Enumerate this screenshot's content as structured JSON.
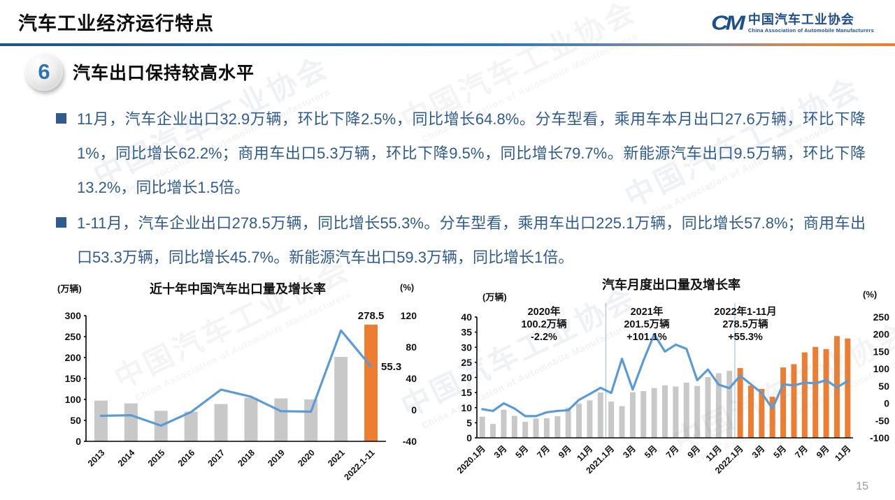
{
  "page": {
    "number": "15"
  },
  "header": {
    "title": "汽车工业经济运行特点",
    "logo": {
      "mark": "CM",
      "cn": "中国汽车工业协会",
      "en": "China Association of Automobile Manufacturers"
    }
  },
  "section": {
    "number": "6",
    "heading": "汽车出口保持较高水平"
  },
  "bullets": [
    "11月，汽车企业出口32.9万辆，环比下降2.5%，同比增长64.8%。分车型看，乘用车本月出口27.6万辆，环比下降1%，同比增长62.2%；商用车出口5.3万辆，环比下降9.5%，同比增长79.7%。新能源汽车出口9.5万辆，环比下降13.2%，同比增长1.5倍。",
    "1-11月，汽车企业出口278.5万辆，同比增长55.3%。分车型看，乘用车出口225.1万辆，同比增长57.8%；商用车出口53.3万辆，同比增长45.7%。新能源汽车出口59.3万辆，同比增长1倍。"
  ],
  "watermark": {
    "cn": "中国汽车工业协会",
    "en": "China Association of Automobile Manufacturers"
  },
  "colors": {
    "accent_blue": "#2E75B6",
    "text_blue": "#2F5B8E",
    "line": "#5B9BD5",
    "gray_bar": "#C8C8C8",
    "orange": "#ED7D31",
    "red": "#FF0000",
    "logo_blue": "#1F4E8C"
  },
  "chart_data": [
    {
      "type": "bar",
      "subtype": "bar+line combo",
      "title": "近十年中国汽车出口量及增长率",
      "left_axis": {
        "label": "(万辆)",
        "min": 0,
        "max": 300,
        "step": 50
      },
      "right_axis": {
        "label": "(%)",
        "min": -40,
        "max": 120,
        "step": 40
      },
      "x_labels": [
        "2013",
        "2014",
        "2015",
        "2016",
        "2017",
        "2018",
        "2019",
        "2020",
        "2021",
        "2022.1-11"
      ],
      "x_label_every": 1,
      "bars": {
        "name": "出口量(万辆)",
        "axis": "left",
        "orange_from": 9,
        "values": [
          97.3,
          90.6,
          72.8,
          70.8,
          89.1,
          104.1,
          102.4,
          100.2,
          201.5,
          278.5
        ]
      },
      "line": {
        "name": "增长率(%)",
        "axis": "right",
        "values": [
          -7.5,
          -6.8,
          -20.0,
          -2.7,
          25.8,
          16.8,
          -1.6,
          -2.2,
          101.1,
          55.3
        ]
      },
      "bar_value_label": {
        "index": 9,
        "text": "278.5"
      },
      "line_value_label": {
        "index": 9,
        "text": "55.3"
      },
      "legend": "none",
      "grid": "off"
    },
    {
      "type": "bar",
      "subtype": "bar+line combo",
      "title": "汽车月度出口量及增长率",
      "left_axis": {
        "label": "(万辆)",
        "min": 0,
        "max": 40,
        "step": 5
      },
      "right_axis": {
        "label": "(%)",
        "min": -100,
        "max": 250,
        "step": 50
      },
      "x_labels": [
        "2020.1月",
        "3月",
        "5月",
        "7月",
        "9月",
        "11月",
        "2021.1月",
        "3月",
        "5月",
        "7月",
        "9月",
        "11月",
        "2022.1月",
        "3月",
        "5月",
        "7月",
        "9月",
        "11月"
      ],
      "x_label_every": 2,
      "bars": {
        "name": "出口量(万辆)",
        "axis": "left",
        "orange_from": 24,
        "values": [
          7.0,
          4.6,
          9.3,
          7.3,
          5.3,
          6.4,
          6.5,
          7.2,
          10.0,
          11.3,
          12.4,
          15.0,
          12.0,
          10.5,
          15.1,
          15.5,
          16.5,
          17.4,
          17.0,
          18.3,
          17.2,
          20.1,
          21.4,
          22.2,
          23.1,
          17.3,
          16.2,
          13.6,
          23.3,
          24.4,
          28.3,
          30.1,
          29.4,
          33.7,
          32.9
        ]
      },
      "line": {
        "name": "增长率(%)",
        "axis": "right",
        "values": [
          -17,
          -22,
          0,
          -15,
          -37,
          -37,
          -26,
          -22,
          -20,
          10,
          27,
          45,
          30,
          129,
          40,
          124,
          200,
          150,
          170,
          158,
          67,
          98,
          54,
          44,
          80,
          55,
          30,
          -15,
          55,
          52,
          60,
          58,
          67,
          46,
          64.8
        ]
      },
      "dividers_after": [
        11,
        23
      ],
      "annotations": [
        {
          "lines": [
            "2020年",
            "100.2万辆",
            "-2.2%"
          ],
          "red_line_index": 2
        },
        {
          "lines": [
            "2021年",
            "201.5万辆",
            "+101.1%"
          ],
          "red_line_index": -1
        },
        {
          "lines": [
            "2022年1-11月",
            "278.5万辆",
            "+55.3%"
          ],
          "red_line_index": -1
        }
      ],
      "legend": "none",
      "grid": "off"
    }
  ]
}
